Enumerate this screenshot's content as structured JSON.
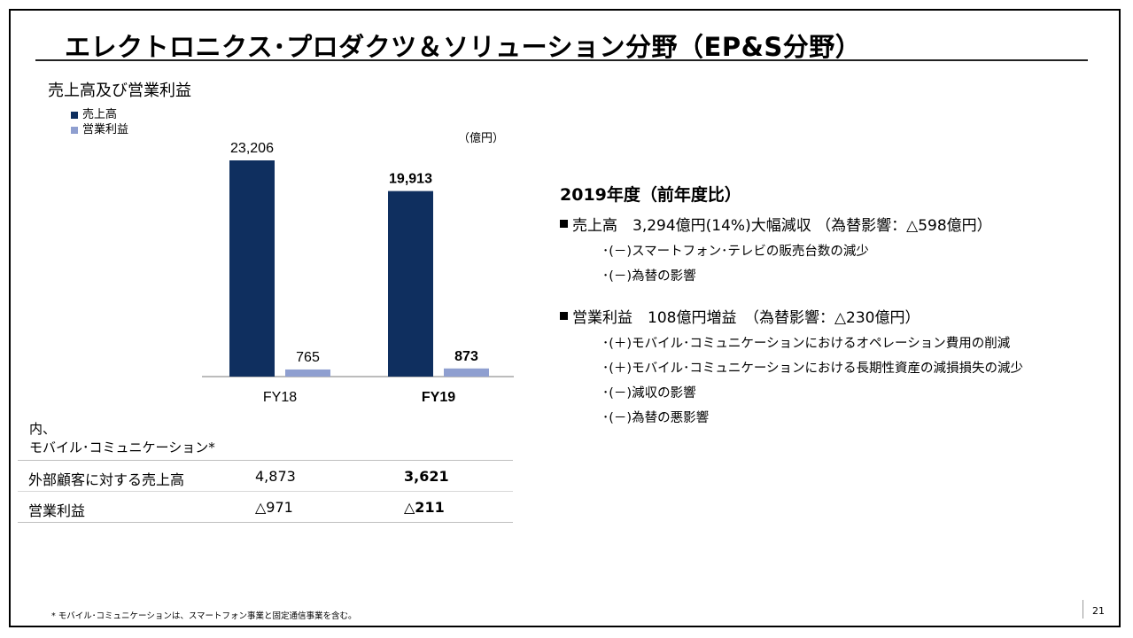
{
  "slide": {
    "title": "エレクトロニクス･プロダクツ＆ソリューション分野（EP&S分野）",
    "chart_heading": "売上高及び営業利益",
    "unit": "（億円）",
    "footnote": "* モバイル･コミュニケーションは、スマートフォン事業と固定通信事業を含む。",
    "page_number": "21"
  },
  "legend": [
    {
      "label": "売上高",
      "color": "#0f2f5f"
    },
    {
      "label": "営業利益",
      "color": "#8f9fd0"
    }
  ],
  "chart_data": {
    "type": "bar",
    "categories": [
      "FY18",
      "FY19"
    ],
    "series": [
      {
        "name": "売上高",
        "values": [
          23206,
          19913
        ],
        "labels": [
          "23,206",
          "19,913"
        ],
        "color": "#0f2f5f"
      },
      {
        "name": "営業利益",
        "values": [
          765,
          873
        ],
        "labels": [
          "765",
          "873"
        ],
        "color": "#8f9fd0"
      }
    ],
    "bold_categories": [
      "FY19"
    ],
    "ylim": [
      0,
      24000
    ],
    "xlabel": "",
    "ylabel": "",
    "unit": "（億円）",
    "grid": false,
    "legend_position": "top-left"
  },
  "mobile": {
    "label_line1": "内、",
    "label_line2": "モバイル･コミュニケーション*",
    "rows": [
      {
        "label": "外部顧客に対する売上高",
        "fy18": "4,873",
        "fy19": "3,621"
      },
      {
        "label": "営業利益",
        "fy18": "△971",
        "fy19": "△211"
      }
    ]
  },
  "summary": {
    "heading": "2019年度（前年度比）",
    "sales_line": "売上高　3,294億円(14%)大幅減収 （為替影響：△598億円）",
    "sales_items": [
      "･(－)スマートフォン･テレビの販売台数の減少",
      "･(－)為替の影響"
    ],
    "op_line": "営業利益　108億円増益　（為替影響：△230億円）",
    "op_items": [
      "･(＋)モバイル･コミュニケーションにおけるオペレーション費用の削減",
      "･(＋)モバイル･コミュニケーションにおける長期性資産の減損損失の減少",
      "･(－)減収の影響",
      "･(－)為替の悪影響"
    ]
  }
}
